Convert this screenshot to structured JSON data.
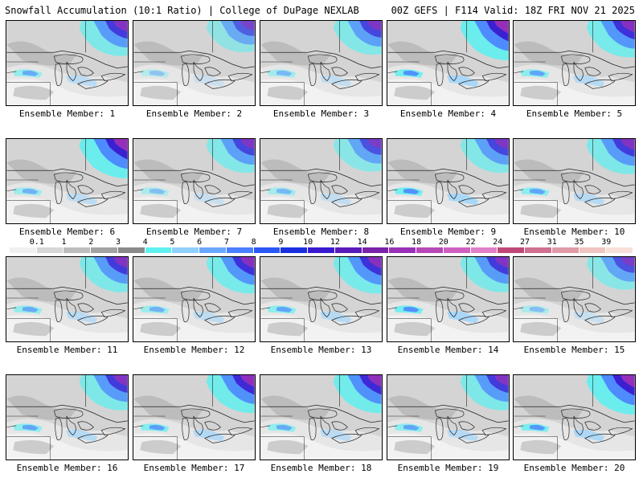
{
  "header": {
    "left": "Snowfall Accumulation (10:1 Ratio) | College of DuPage NEXLAB",
    "right": "00Z GEFS | F114 Valid: 18Z FRI NOV 21 2025"
  },
  "legend": {
    "labels": [
      "0.1",
      "1",
      "2",
      "3",
      "4",
      "5",
      "6",
      "7",
      "8",
      "9",
      "10",
      "12",
      "14",
      "16",
      "18",
      "20",
      "22",
      "24",
      "27",
      "31",
      "35",
      "39"
    ],
    "colors": [
      "#f0f0f0",
      "#d6d6d6",
      "#bdbdbd",
      "#a3a3a3",
      "#8a8a8a",
      "#5ff0f0",
      "#8fd0ff",
      "#6aa8ff",
      "#4a80ff",
      "#2a58f5",
      "#1a30e0",
      "#3a1ad0",
      "#5a1ab8",
      "#7a22a8",
      "#9a30b8",
      "#b848b8",
      "#d060c0",
      "#e080c8",
      "#c04878",
      "#d07090",
      "#e09aa8",
      "#f0c4c0",
      "#f8e0d8"
    ]
  },
  "members": [
    {
      "label": "Ensemble Member: 1",
      "intensity": 0.7,
      "band": 0.5
    },
    {
      "label": "Ensemble Member: 2",
      "intensity": 0.4,
      "band": 0.1
    },
    {
      "label": "Ensemble Member: 3",
      "intensity": 0.6,
      "band": 0.3
    },
    {
      "label": "Ensemble Member: 4",
      "intensity": 1.0,
      "band": 0.9
    },
    {
      "label": "Ensemble Member: 5",
      "intensity": 0.8,
      "band": 0.6
    },
    {
      "label": "Ensemble Member: 6",
      "intensity": 1.0,
      "band": 0.4
    },
    {
      "label": "Ensemble Member: 7",
      "intensity": 0.6,
      "band": 0.2
    },
    {
      "label": "Ensemble Member: 8",
      "intensity": 0.5,
      "band": 0.3
    },
    {
      "label": "Ensemble Member: 9",
      "intensity": 0.6,
      "band": 0.9
    },
    {
      "label": "Ensemble Member: 10",
      "intensity": 0.7,
      "band": 0.6
    },
    {
      "label": "Ensemble Member: 11",
      "intensity": 0.7,
      "band": 0.5
    },
    {
      "label": "Ensemble Member: 12",
      "intensity": 0.8,
      "band": 0.4
    },
    {
      "label": "Ensemble Member: 13",
      "intensity": 0.8,
      "band": 0.6
    },
    {
      "label": "Ensemble Member: 14",
      "intensity": 0.7,
      "band": 0.9
    },
    {
      "label": "Ensemble Member: 15",
      "intensity": 0.5,
      "band": 0.2
    },
    {
      "label": "Ensemble Member: 16",
      "intensity": 0.7,
      "band": 0.6
    },
    {
      "label": "Ensemble Member: 17",
      "intensity": 0.9,
      "band": 0.7
    },
    {
      "label": "Ensemble Member: 18",
      "intensity": 0.9,
      "band": 0.5
    },
    {
      "label": "Ensemble Member: 19",
      "intensity": 0.7,
      "band": 0.6
    },
    {
      "label": "Ensemble Member: 20",
      "intensity": 1.0,
      "band": 0.8
    }
  ]
}
